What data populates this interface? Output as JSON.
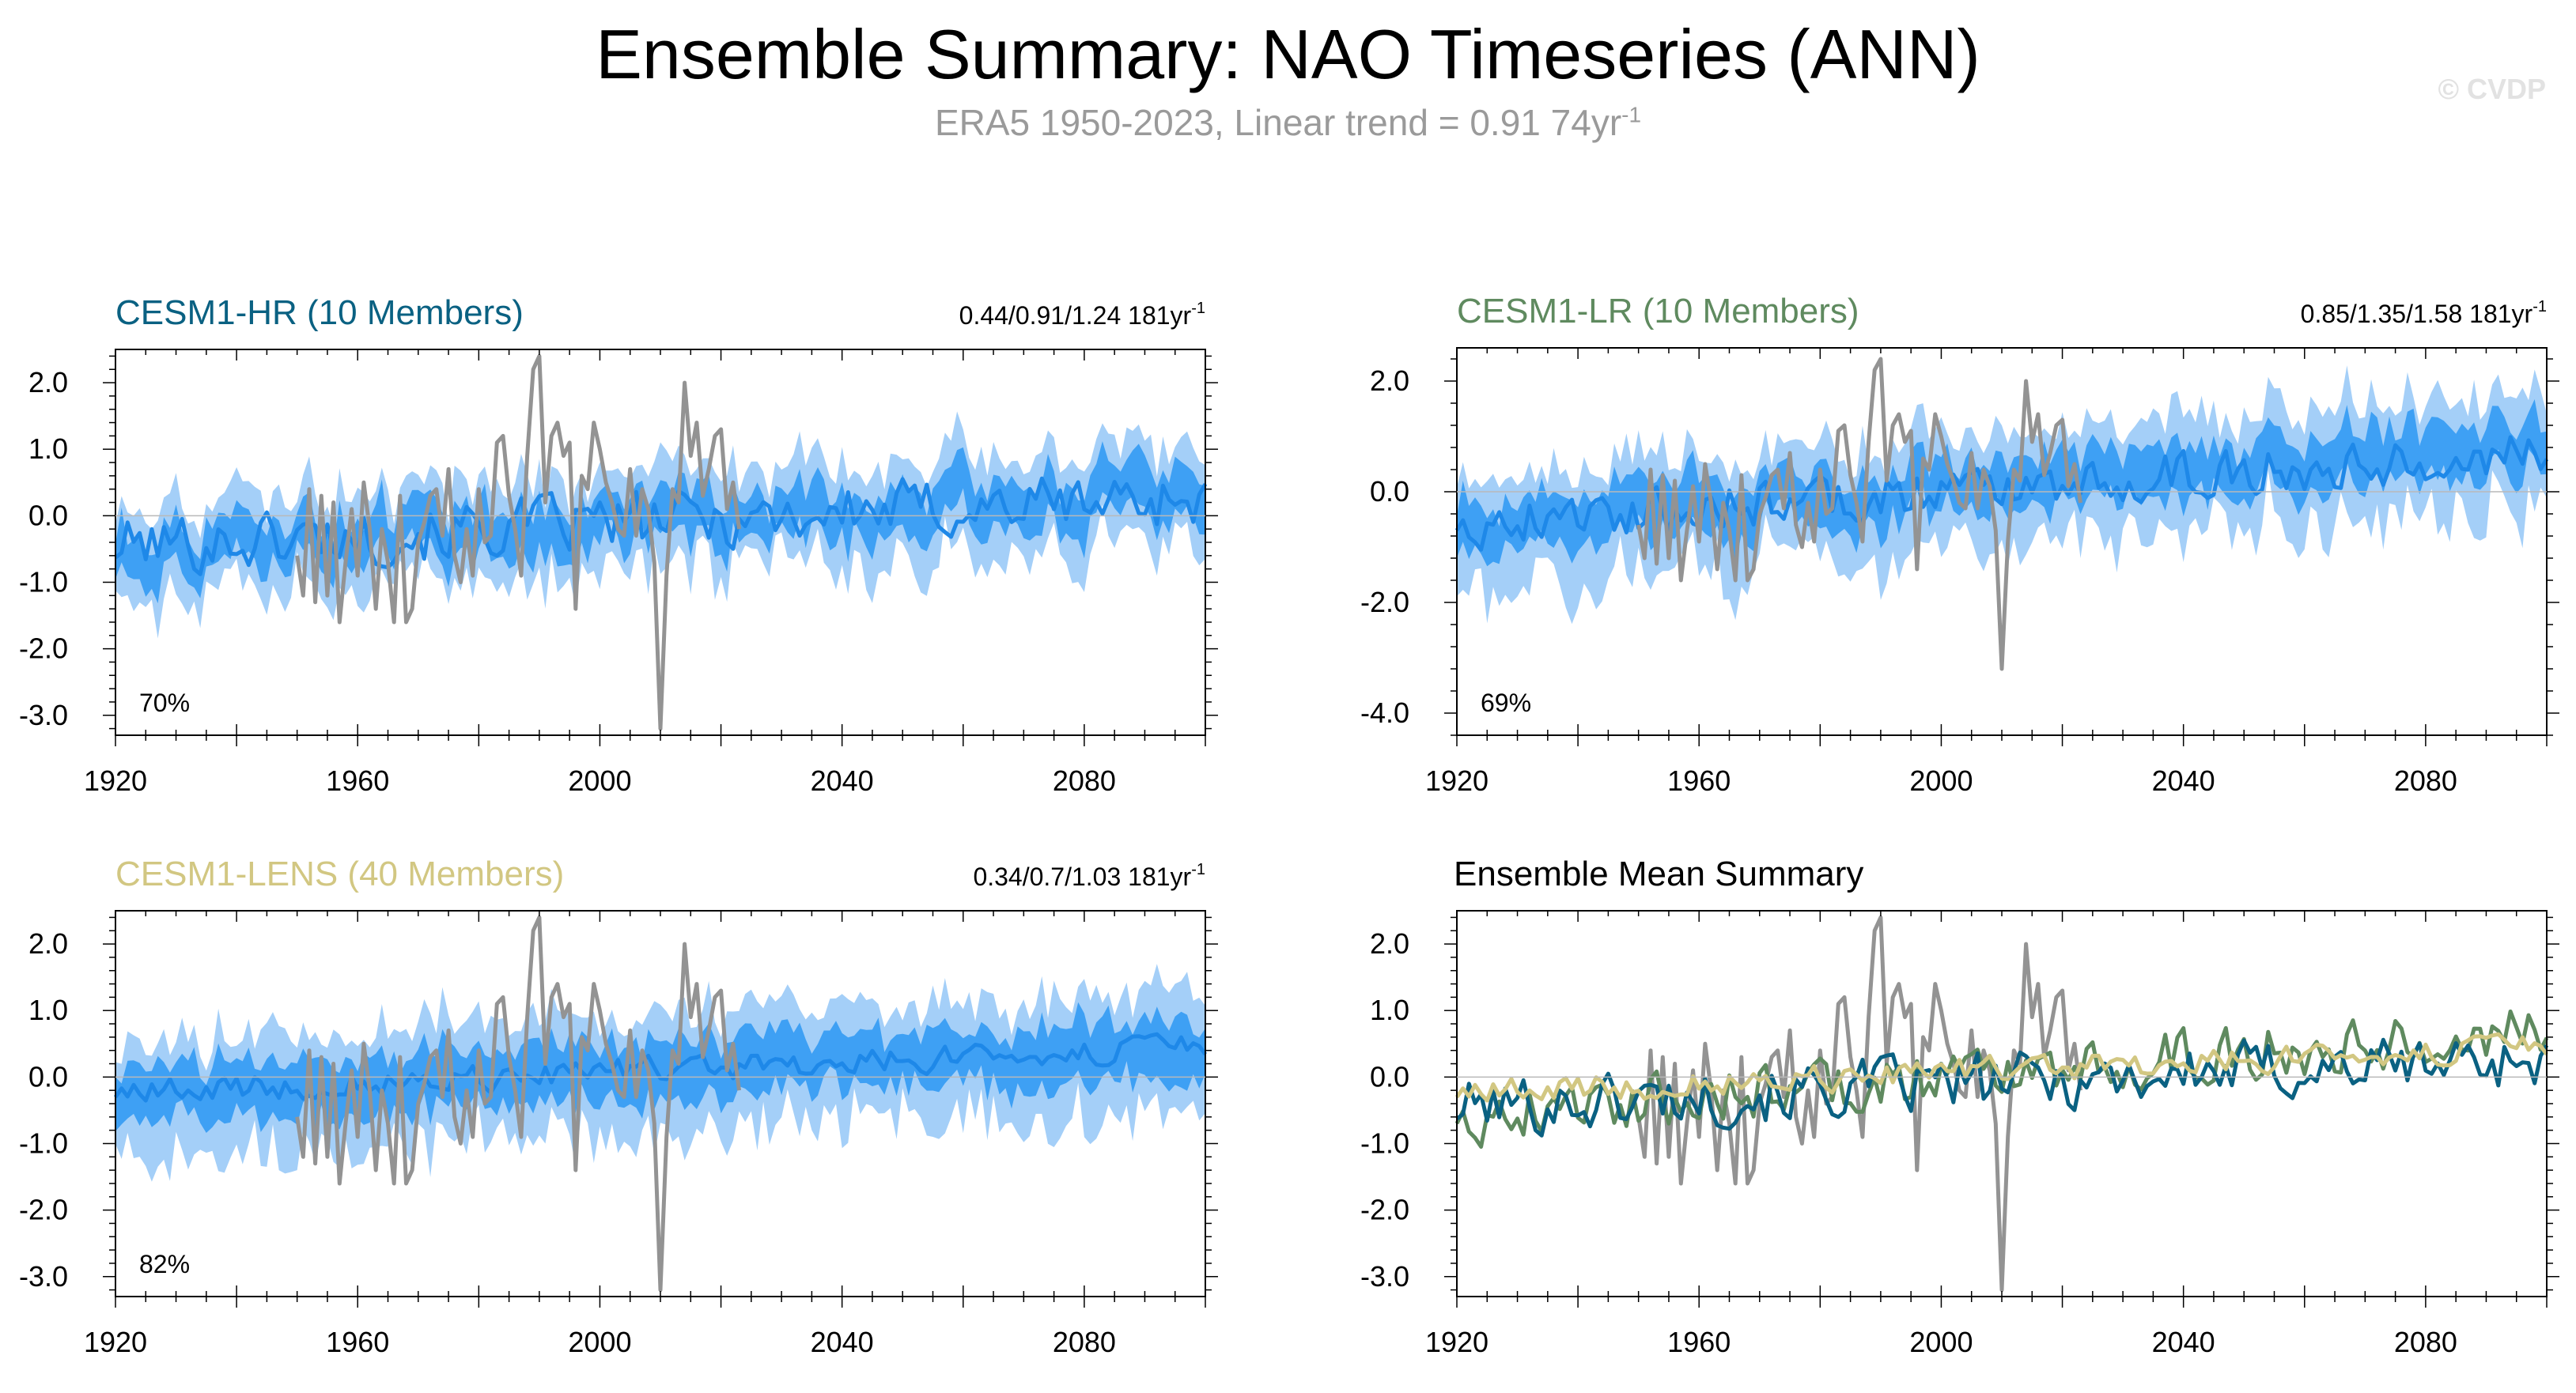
{
  "header": {
    "title": "Ensemble Summary: NAO Timeseries (ANN)",
    "subtitle_text": "ERA5 1950-2023, Linear trend = 0.91 74yr",
    "subtitle_sup": "-1",
    "copyright": "© CVDP"
  },
  "colors": {
    "band_outer": "#a4cff8",
    "band_inner": "#3ea0f4",
    "ens_mean": "#1e88e8",
    "obs": "#939393",
    "hr": "#0a6182",
    "lr": "#5f8a5f",
    "lens": "#d2c782",
    "zero_line": "#b9b9b9"
  },
  "chart_data": [
    {
      "id": "hr",
      "type": "area",
      "title": "CESM1-HR (10 Members)",
      "title_color": "#0a6182",
      "stats_text": "0.44/0.91/1.24 181yr",
      "stats_sup": "-1",
      "percent_label": "70%",
      "x_range": [
        1920,
        2100
      ],
      "xticks": [
        1920,
        1960,
        2000,
        2040,
        2080
      ],
      "xtick_labels": [
        "1920",
        "1960",
        "2000",
        "2040",
        "2080"
      ],
      "ylim": [
        -3.3,
        2.5
      ],
      "yticks": [
        -3,
        -2,
        -1,
        0,
        1,
        2
      ],
      "ytick_labels": [
        "-3.0",
        "-2.0",
        "-1.0",
        "0.0",
        "1.0",
        "2.0"
      ],
      "series": [
        {
          "name": "ensemble range (min/max)",
          "x_range": [
            1920,
            2100
          ],
          "values": "generated"
        },
        {
          "name": "10th-90th percentile",
          "x_range": [
            1920,
            2100
          ],
          "values": "generated"
        },
        {
          "name": "ensemble mean",
          "x_range": [
            1920,
            2100
          ],
          "values": "generated"
        },
        {
          "name": "ERA5",
          "x_range": [
            1950,
            2023
          ],
          "values": [
            -0.6,
            -1.2,
            0.4,
            -1.3,
            0.3,
            -1.2,
            0.2,
            -1.6,
            -0.7,
            0.1,
            -0.9,
            0.5,
            -0.2,
            -1.4,
            -0.2,
            -0.7,
            -1.6,
            0.3,
            -1.6,
            -1.4,
            -0.4,
            -0.1,
            0.3,
            0.4,
            -0.3,
            0.7,
            -0.6,
            -1.0,
            -0.2,
            -0.9,
            0.4,
            -0.4,
            -0.3,
            1.1,
            1.2,
            0.3,
            -0.2,
            -0.9,
            0.9,
            2.2,
            2.4,
            0.2,
            1.2,
            1.4,
            0.9,
            1.1,
            -1.4,
            0.6,
            0.4,
            1.4,
            1.0,
            0.5,
            0.2,
            -0.2,
            -0.3,
            0.7,
            -0.3,
            0.4,
            0.1,
            -0.7,
            -3.2,
            -0.9,
            0.4,
            0.2,
            2.0,
            0.9,
            1.4,
            0.3,
            0.7,
            1.2,
            1.3,
            0.1,
            0.5,
            -0.2
          ]
        }
      ]
    },
    {
      "id": "lr",
      "type": "area",
      "title": "CESM1-LR (10 Members)",
      "title_color": "#5f8a5f",
      "stats_text": "0.85/1.35/1.58 181yr",
      "stats_sup": "-1",
      "percent_label": "69%",
      "x_range": [
        1920,
        2100
      ],
      "xticks": [
        1920,
        1960,
        2000,
        2040,
        2080
      ],
      "xtick_labels": [
        "1920",
        "1960",
        "2000",
        "2040",
        "2080"
      ],
      "ylim": [
        -4.4,
        2.6
      ],
      "yticks": [
        -4,
        -2,
        0,
        2
      ],
      "ytick_labels": [
        "-4.0",
        "-2.0",
        "0.0",
        "2.0"
      ],
      "series": [
        {
          "name": "ensemble range (min/max)",
          "x_range": [
            1920,
            2100
          ],
          "values": "generated"
        },
        {
          "name": "10th-90th percentile",
          "x_range": [
            1920,
            2100
          ],
          "values": "generated"
        },
        {
          "name": "ensemble mean",
          "x_range": [
            1920,
            2100
          ],
          "values": "generated"
        },
        {
          "name": "ERA5",
          "x_range": [
            1950,
            2023
          ],
          "values": "same as CESM1-HR panel"
        }
      ]
    },
    {
      "id": "lens",
      "type": "area",
      "title": "CESM1-LENS (40 Members)",
      "title_color": "#d2c782",
      "stats_text": "0.34/0.7/1.03 181yr",
      "stats_sup": "-1",
      "percent_label": "82%",
      "x_range": [
        1920,
        2100
      ],
      "xticks": [
        1920,
        1960,
        2000,
        2040,
        2080
      ],
      "xtick_labels": [
        "1920",
        "1960",
        "2000",
        "2040",
        "2080"
      ],
      "ylim": [
        -3.3,
        2.5
      ],
      "yticks": [
        -3,
        -2,
        -1,
        0,
        1,
        2
      ],
      "ytick_labels": [
        "-3.0",
        "-2.0",
        "-1.0",
        "0.0",
        "1.0",
        "2.0"
      ],
      "series": [
        {
          "name": "ensemble range (min/max)",
          "x_range": [
            1920,
            2100
          ],
          "values": "generated"
        },
        {
          "name": "10th-90th percentile",
          "x_range": [
            1920,
            2100
          ],
          "values": "generated"
        },
        {
          "name": "ensemble mean",
          "x_range": [
            1920,
            2100
          ],
          "values": "generated"
        },
        {
          "name": "ERA5",
          "x_range": [
            1950,
            2023
          ],
          "values": "same as CESM1-HR panel"
        }
      ]
    },
    {
      "id": "summary",
      "type": "line",
      "title": "Ensemble Mean Summary",
      "title_color": "#000000",
      "x_range": [
        1920,
        2100
      ],
      "xticks": [
        1920,
        1960,
        2000,
        2040,
        2080
      ],
      "xtick_labels": [
        "1920",
        "1960",
        "2000",
        "2040",
        "2080"
      ],
      "ylim": [
        -3.3,
        2.5
      ],
      "yticks": [
        -3,
        -2,
        -1,
        0,
        1,
        2
      ],
      "ytick_labels": [
        "-3.0",
        "-2.0",
        "-1.0",
        "0.0",
        "1.0",
        "2.0"
      ],
      "series": [
        {
          "name": "ERA5",
          "color": "#939393"
        },
        {
          "name": "CESM1-HR ensemble mean",
          "color": "#0a6182"
        },
        {
          "name": "CESM1-LR ensemble mean",
          "color": "#5f8a5f"
        },
        {
          "name": "CESM1-LENS ensemble mean",
          "color": "#d2c782"
        }
      ]
    }
  ]
}
